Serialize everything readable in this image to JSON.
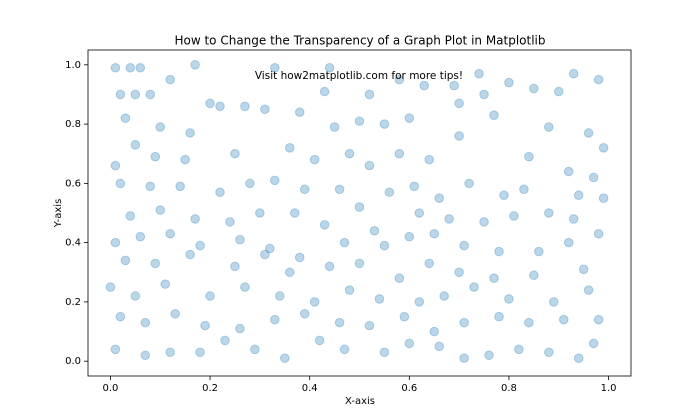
{
  "chart_data": {
    "type": "scatter",
    "title": "How to Change the Transparency of a Graph Plot in Matplotlib",
    "annotation": "Visit how2matplotlib.com for more tips!",
    "x_label": "X-axis",
    "y_label": "Y-axis",
    "color": "#1f77b4",
    "alpha": 0.3,
    "grid": false,
    "xlim": [
      -0.045,
      1.045
    ],
    "ylim": [
      -0.05,
      1.05
    ],
    "xticks": [
      {
        "value": 0,
        "label": "0.0"
      },
      0.2,
      0.4,
      0.6,
      0.8,
      {
        "value": 1,
        "label": "1.0"
      }
    ],
    "yticks": [
      {
        "value": 0,
        "label": "0.0"
      },
      0.2,
      0.4,
      0.6,
      0.8,
      {
        "value": 1,
        "label": "1.0"
      }
    ],
    "x": [
      0.01,
      0.04,
      0.06,
      0.17,
      0.33,
      0.44,
      0.74,
      0.93,
      0.98,
      0.02,
      0.05,
      0.08,
      0.12,
      0.2,
      0.27,
      0.31,
      0.38,
      0.43,
      0.52,
      0.58,
      0.63,
      0.69,
      0.75,
      0.8,
      0.85,
      0.9,
      0.03,
      0.1,
      0.16,
      0.22,
      0.45,
      0.5,
      0.55,
      0.6,
      0.7,
      0.77,
      0.88,
      0.96,
      0.99,
      0.01,
      0.05,
      0.09,
      0.15,
      0.25,
      0.36,
      0.41,
      0.48,
      0.52,
      0.58,
      0.64,
      0.7,
      0.84,
      0.92,
      0.97,
      0.02,
      0.08,
      0.14,
      0.22,
      0.28,
      0.33,
      0.39,
      0.46,
      0.5,
      0.56,
      0.61,
      0.66,
      0.72,
      0.79,
      0.83,
      0.94,
      0.99,
      0.04,
      0.1,
      0.17,
      0.24,
      0.3,
      0.37,
      0.43,
      0.53,
      0.62,
      0.68,
      0.75,
      0.81,
      0.88,
      0.93,
      0.01,
      0.06,
      0.12,
      0.18,
      0.26,
      0.32,
      0.38,
      0.47,
      0.55,
      0.6,
      0.65,
      0.71,
      0.78,
      0.86,
      0.92,
      0.98,
      0.03,
      0.09,
      0.16,
      0.25,
      0.31,
      0.36,
      0.44,
      0.5,
      0.58,
      0.64,
      0.7,
      0.77,
      0.85,
      0.95,
      0.0,
      0.05,
      0.11,
      0.2,
      0.27,
      0.34,
      0.41,
      0.48,
      0.54,
      0.62,
      0.67,
      0.73,
      0.8,
      0.89,
      0.96,
      0.02,
      0.07,
      0.13,
      0.19,
      0.26,
      0.33,
      0.39,
      0.46,
      0.52,
      0.59,
      0.65,
      0.71,
      0.78,
      0.84,
      0.91,
      0.98,
      0.01,
      0.07,
      0.12,
      0.18,
      0.23,
      0.29,
      0.35,
      0.42,
      0.47,
      0.55,
      0.6,
      0.66,
      0.71,
      0.76,
      0.82,
      0.88,
      0.94,
      0.97
    ],
    "values": [
      0.99,
      0.99,
      0.99,
      1.0,
      0.99,
      0.99,
      0.97,
      0.97,
      0.95,
      0.9,
      0.9,
      0.9,
      0.95,
      0.87,
      0.86,
      0.85,
      0.84,
      0.91,
      0.9,
      0.95,
      0.93,
      0.93,
      0.9,
      0.94,
      0.92,
      0.91,
      0.82,
      0.79,
      0.77,
      0.86,
      0.79,
      0.81,
      0.8,
      0.82,
      0.87,
      0.83,
      0.79,
      0.77,
      0.72,
      0.66,
      0.73,
      0.69,
      0.68,
      0.7,
      0.72,
      0.68,
      0.7,
      0.66,
      0.7,
      0.68,
      0.76,
      0.69,
      0.64,
      0.62,
      0.6,
      0.59,
      0.59,
      0.57,
      0.6,
      0.61,
      0.58,
      0.58,
      0.52,
      0.57,
      0.59,
      0.55,
      0.6,
      0.56,
      0.58,
      0.56,
      0.55,
      0.49,
      0.51,
      0.48,
      0.47,
      0.5,
      0.5,
      0.46,
      0.44,
      0.5,
      0.48,
      0.47,
      0.49,
      0.5,
      0.48,
      0.4,
      0.42,
      0.43,
      0.39,
      0.41,
      0.38,
      0.35,
      0.4,
      0.39,
      0.42,
      0.43,
      0.39,
      0.37,
      0.37,
      0.4,
      0.43,
      0.34,
      0.33,
      0.36,
      0.32,
      0.36,
      0.3,
      0.32,
      0.33,
      0.28,
      0.33,
      0.3,
      0.28,
      0.29,
      0.31,
      0.25,
      0.22,
      0.26,
      0.22,
      0.25,
      0.22,
      0.2,
      0.24,
      0.21,
      0.2,
      0.22,
      0.25,
      0.21,
      0.2,
      0.24,
      0.15,
      0.13,
      0.16,
      0.12,
      0.11,
      0.14,
      0.16,
      0.13,
      0.12,
      0.15,
      0.1,
      0.13,
      0.15,
      0.13,
      0.14,
      0.14,
      0.04,
      0.02,
      0.03,
      0.03,
      0.07,
      0.04,
      0.01,
      0.07,
      0.04,
      0.03,
      0.06,
      0.05,
      0.01,
      0.02,
      0.04,
      0.03,
      0.01,
      0.06
    ]
  }
}
